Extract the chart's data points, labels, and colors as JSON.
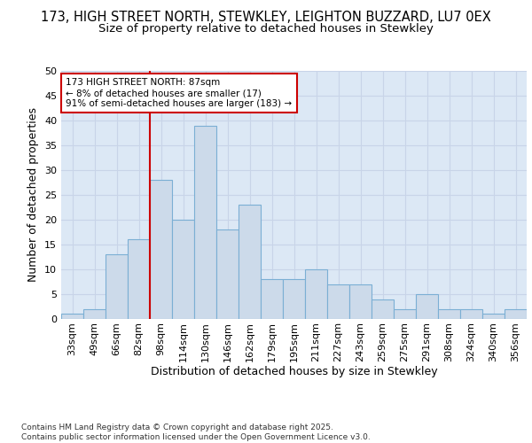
{
  "title_line1": "173, HIGH STREET NORTH, STEWKLEY, LEIGHTON BUZZARD, LU7 0EX",
  "title_line2": "Size of property relative to detached houses in Stewkley",
  "xlabel": "Distribution of detached houses by size in Stewkley",
  "ylabel": "Number of detached properties",
  "categories": [
    "33sqm",
    "49sqm",
    "66sqm",
    "82sqm",
    "98sqm",
    "114sqm",
    "130sqm",
    "146sqm",
    "162sqm",
    "179sqm",
    "195sqm",
    "211sqm",
    "227sqm",
    "243sqm",
    "259sqm",
    "275sqm",
    "291sqm",
    "308sqm",
    "324sqm",
    "340sqm",
    "356sqm"
  ],
  "values": [
    1,
    2,
    13,
    16,
    28,
    20,
    39,
    18,
    23,
    8,
    8,
    10,
    7,
    7,
    4,
    2,
    5,
    2,
    2,
    1,
    2
  ],
  "bar_color": "#ccdaea",
  "bar_edge_color": "#7bafd4",
  "bar_width": 1.0,
  "vline_x": 3.5,
  "vline_color": "#cc0000",
  "annotation_text": "173 HIGH STREET NORTH: 87sqm\n← 8% of detached houses are smaller (17)\n91% of semi-detached houses are larger (183) →",
  "annotation_box_color": "#cc0000",
  "ylim": [
    0,
    50
  ],
  "yticks": [
    0,
    5,
    10,
    15,
    20,
    25,
    30,
    35,
    40,
    45,
    50
  ],
  "grid_color": "#c8d4e8",
  "background_color": "#dce8f5",
  "footer_text": "Contains HM Land Registry data © Crown copyright and database right 2025.\nContains public sector information licensed under the Open Government Licence v3.0.",
  "title_fontsize": 10.5,
  "subtitle_fontsize": 9.5,
  "annotation_fontsize": 7.5,
  "axis_label_fontsize": 9,
  "tick_fontsize": 8,
  "footer_fontsize": 6.5
}
